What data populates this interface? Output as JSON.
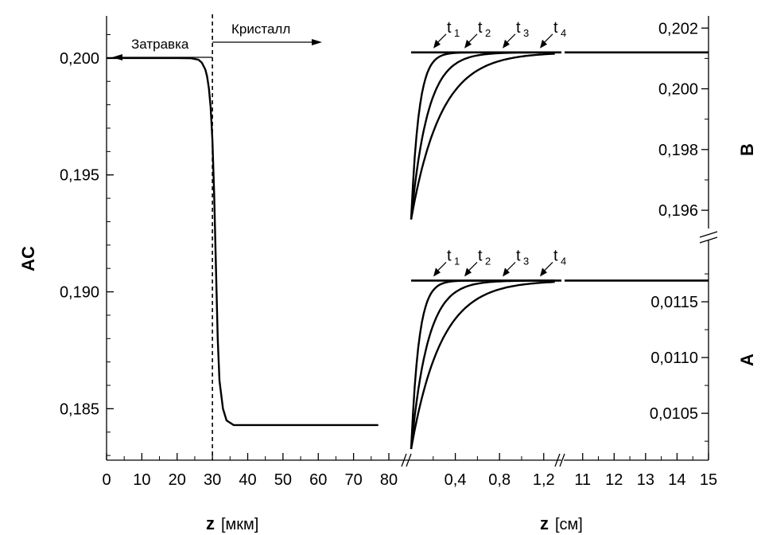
{
  "chart_data": {
    "type": "line",
    "left_panel": {
      "xlabel": "z",
      "xlabel_unit": "[мкм]",
      "ylabel": "AC",
      "xlim": [
        0,
        80
      ],
      "ylim": [
        0.1828,
        0.2018
      ],
      "x_ticks": [
        "0",
        "10",
        "20",
        "30",
        "40",
        "50",
        "60",
        "70",
        "80"
      ],
      "y_ticks": [
        {
          "v": 0.2,
          "label": "0,200"
        },
        {
          "v": 0.195,
          "label": "0,195"
        },
        {
          "v": 0.19,
          "label": "0,190"
        },
        {
          "v": 0.185,
          "label": "0,185"
        }
      ],
      "interface_z": 30,
      "seed_label": "Затравка",
      "crystal_label": "Кристалл",
      "series": [
        {
          "x": [
            0,
            20,
            24,
            26,
            27,
            28,
            28.5,
            29,
            29.5,
            30,
            30.5,
            31,
            31.5,
            32,
            33,
            34,
            36,
            40,
            50,
            60,
            70,
            77
          ],
          "y": [
            0.2,
            0.2,
            0.19999,
            0.19993,
            0.1998,
            0.1995,
            0.1992,
            0.1987,
            0.1979,
            0.1965,
            0.1942,
            0.191,
            0.188,
            0.1862,
            0.185,
            0.1845,
            0.1843,
            0.1843,
            0.1843,
            0.1843,
            0.1843,
            0.1843
          ]
        }
      ]
    },
    "right_panel": {
      "xlabel": "z",
      "xlabel_unit": "[см]",
      "x_ticks_left": [
        {
          "v": 0.4,
          "label": "0,4"
        },
        {
          "v": 0.8,
          "label": "0,8"
        },
        {
          "v": 1.2,
          "label": "1,2"
        }
      ],
      "x_ticks_right": [
        {
          "v": 11,
          "label": "11"
        },
        {
          "v": 12,
          "label": "12"
        },
        {
          "v": 13,
          "label": "13"
        },
        {
          "v": 14,
          "label": "14"
        },
        {
          "v": 15,
          "label": "15"
        }
      ],
      "xlim_left": [
        0,
        1.36
      ],
      "xlim_right": [
        10.4,
        15
      ],
      "subplots": [
        {
          "id": "B",
          "label": "B",
          "ylim": [
            0.1954,
            0.2024
          ],
          "y_ticks": [
            {
              "v": 0.202,
              "label": "0,202"
            },
            {
              "v": 0.2,
              "label": "0,200"
            },
            {
              "v": 0.198,
              "label": "0,198"
            },
            {
              "v": 0.196,
              "label": "0,196"
            }
          ],
          "y_start": 0.1957,
          "y_plateau": 0.2012,
          "time_labels": [
            "t",
            "t",
            "t",
            "t"
          ],
          "time_subscripts": [
            "1",
            "2",
            "3",
            "4"
          ]
        },
        {
          "id": "A",
          "label": "A",
          "ylim": [
            0.01008,
            0.01195
          ],
          "y_ticks": [
            {
              "v": 0.0115,
              "label": "0,0115"
            },
            {
              "v": 0.011,
              "label": "0,0110"
            },
            {
              "v": 0.0105,
              "label": "0,0105"
            }
          ],
          "y_start": 0.01018,
          "y_plateau": 0.01169,
          "time_labels": [
            "t",
            "t",
            "t",
            "t"
          ],
          "time_subscripts": [
            "1",
            "2",
            "3",
            "4"
          ]
        }
      ],
      "curve_decay_lengths": [
        0.07,
        0.15,
        0.27
      ]
    }
  }
}
